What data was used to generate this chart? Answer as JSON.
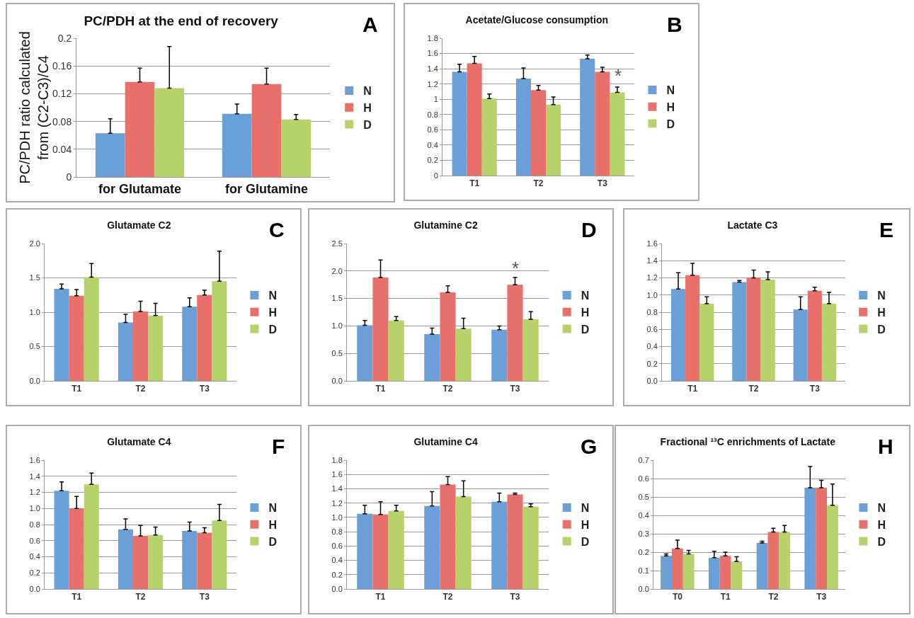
{
  "chart_data": [
    {
      "type": "bar",
      "title": "PC/PDH at the end of recovery",
      "ylabel": "PC/PDH ratio calculated\nfrom (C2-C3)/C4",
      "categories": [
        "for Glutamate",
        "for Glutamine"
      ],
      "series": [
        {
          "name": "N",
          "color": "#6a9fd8",
          "values": [
            0.063,
            0.091
          ],
          "errors": [
            [
              0.063,
              0.084
            ],
            [
              0.091,
              0.105
            ]
          ]
        },
        {
          "name": "H",
          "color": "#e8706a",
          "values": [
            0.137,
            0.134
          ],
          "errors": [
            [
              0.137,
              0.157
            ],
            [
              0.134,
              0.157
            ]
          ]
        },
        {
          "name": "D",
          "color": "#b5d36a",
          "values": [
            0.128,
            0.083
          ],
          "errors": [
            [
              0.128,
              0.188
            ],
            [
              0.083,
              0.09
            ]
          ]
        }
      ],
      "ylim": [
        0,
        0.2
      ],
      "yticks": [
        0,
        0.04,
        0.08,
        0.12,
        0.16,
        0.2
      ],
      "grid": "y",
      "legend": "right",
      "annotations": [
        "A"
      ]
    },
    {
      "type": "bar",
      "title": "Acetate/Glucose consumption",
      "categories": [
        "T1",
        "T2",
        "T3"
      ],
      "series": [
        {
          "name": "N",
          "color": "#6a9fd8",
          "values": [
            1.36,
            1.27,
            1.53
          ],
          "errors": [
            [
              1.36,
              1.46
            ],
            [
              1.27,
              1.41
            ],
            [
              1.53,
              1.58
            ]
          ]
        },
        {
          "name": "H",
          "color": "#e8706a",
          "values": [
            1.47,
            1.12,
            1.36
          ],
          "errors": [
            [
              1.47,
              1.56
            ],
            [
              1.12,
              1.18
            ],
            [
              1.36,
              1.42
            ]
          ]
        },
        {
          "name": "D",
          "color": "#b5d36a",
          "values": [
            1.01,
            0.93,
            1.09
          ],
          "errors": [
            [
              1.01,
              1.07
            ],
            [
              0.93,
              1.03
            ],
            [
              1.09,
              1.16
            ]
          ]
        }
      ],
      "ylim": [
        0,
        1.8
      ],
      "yticks": [
        0,
        0.2,
        0.4,
        0.6,
        0.8,
        1,
        1.2,
        1.4,
        1.6,
        1.8
      ],
      "grid": "y",
      "legend": "right",
      "annotations": [
        "B",
        "*"
      ]
    },
    {
      "type": "bar",
      "title": "Glutamate C2",
      "categories": [
        "T1",
        "T2",
        "T3"
      ],
      "series": [
        {
          "name": "N",
          "color": "#6a9fd8",
          "values": [
            1.34,
            0.85,
            1.08
          ],
          "errors": [
            [
              1.34,
              1.41
            ],
            [
              0.85,
              0.97
            ],
            [
              1.08,
              1.21
            ]
          ]
        },
        {
          "name": "H",
          "color": "#e8706a",
          "values": [
            1.24,
            1.01,
            1.25
          ],
          "errors": [
            [
              1.24,
              1.33
            ],
            [
              1.01,
              1.16
            ],
            [
              1.25,
              1.32
            ]
          ]
        },
        {
          "name": "D",
          "color": "#b5d36a",
          "values": [
            1.51,
            0.95,
            1.45
          ],
          "errors": [
            [
              1.51,
              1.71
            ],
            [
              0.95,
              1.13
            ],
            [
              1.45,
              1.89
            ]
          ]
        }
      ],
      "ylim": [
        0,
        2
      ],
      "yticks": [
        {
          "value": 0,
          "label": "0.0"
        },
        {
          "value": 0.5,
          "label": "0.5"
        },
        {
          "value": 1,
          "label": "1.0"
        },
        {
          "value": 1.5,
          "label": "1.5"
        },
        {
          "value": 2,
          "label": "2.0"
        }
      ],
      "grid": "y",
      "legend": "right",
      "annotations": [
        "C"
      ]
    },
    {
      "type": "bar",
      "title": "Glutamine C2",
      "categories": [
        "T1",
        "T2",
        "T3"
      ],
      "series": [
        {
          "name": "N",
          "color": "#6a9fd8",
          "values": [
            1.01,
            0.85,
            0.93
          ],
          "errors": [
            [
              1.01,
              1.1
            ],
            [
              0.85,
              0.96
            ],
            [
              0.93,
              1.0
            ]
          ]
        },
        {
          "name": "H",
          "color": "#e8706a",
          "values": [
            1.88,
            1.61,
            1.75
          ],
          "errors": [
            [
              1.88,
              2.2
            ],
            [
              1.61,
              1.73
            ],
            [
              1.75,
              1.88
            ]
          ]
        },
        {
          "name": "D",
          "color": "#b5d36a",
          "values": [
            1.1,
            0.95,
            1.12
          ],
          "errors": [
            [
              1.1,
              1.17
            ],
            [
              0.95,
              1.14
            ],
            [
              1.12,
              1.26
            ]
          ]
        }
      ],
      "ylim": [
        0,
        2.5
      ],
      "yticks": [
        {
          "value": 0,
          "label": "0.0"
        },
        {
          "value": 0.5,
          "label": "0.5"
        },
        {
          "value": 1,
          "label": "1.0"
        },
        {
          "value": 1.5,
          "label": "1.5"
        },
        {
          "value": 2,
          "label": "2.0"
        },
        {
          "value": 2.5,
          "label": "2.5"
        }
      ],
      "grid": "y",
      "legend": "right",
      "annotations": [
        "D",
        {
          "text": "*",
          "x": "T3",
          "y": 1.88
        }
      ]
    },
    {
      "type": "bar",
      "title": "Lactate C3",
      "categories": [
        "T1",
        "T2",
        "T3"
      ],
      "series": [
        {
          "name": "N",
          "color": "#6a9fd8",
          "values": [
            1.07,
            1.15,
            0.83
          ],
          "errors": [
            [
              1.07,
              1.26
            ],
            [
              1.15,
              1.17
            ],
            [
              0.83,
              0.98
            ]
          ]
        },
        {
          "name": "H",
          "color": "#e8706a",
          "values": [
            1.23,
            1.2,
            1.05
          ],
          "errors": [
            [
              1.23,
              1.37
            ],
            [
              1.2,
              1.29
            ],
            [
              1.05,
              1.09
            ]
          ]
        },
        {
          "name": "D",
          "color": "#b5d36a",
          "values": [
            0.9,
            1.18,
            0.9
          ],
          "errors": [
            [
              0.9,
              0.98
            ],
            [
              1.18,
              1.27
            ],
            [
              0.9,
              1.03
            ]
          ]
        }
      ],
      "ylim": [
        0,
        1.6
      ],
      "yticks": [
        {
          "value": 0,
          "label": "0.0"
        },
        {
          "value": 0.2,
          "label": "0.2"
        },
        {
          "value": 0.4,
          "label": "0.4"
        },
        {
          "value": 0.6,
          "label": "0.6"
        },
        {
          "value": 0.8,
          "label": "0.8"
        },
        {
          "value": 1,
          "label": "1.0"
        },
        {
          "value": 1.2,
          "label": "1.2"
        },
        {
          "value": 1.4,
          "label": "1.4"
        },
        {
          "value": 1.6,
          "label": "1.6"
        }
      ],
      "grid": "y",
      "legend": "right",
      "annotations": [
        "E"
      ]
    },
    {
      "type": "bar",
      "title": "Glutamate C4",
      "categories": [
        "T1",
        "T2",
        "T3"
      ],
      "series": [
        {
          "name": "N",
          "color": "#6a9fd8",
          "values": [
            1.22,
            0.74,
            0.72
          ],
          "errors": [
            [
              1.22,
              1.33
            ],
            [
              0.74,
              0.87
            ],
            [
              0.72,
              0.83
            ]
          ]
        },
        {
          "name": "H",
          "color": "#e8706a",
          "values": [
            1.0,
            0.66,
            0.7
          ],
          "errors": [
            [
              1.0,
              1.15
            ],
            [
              0.66,
              0.79
            ],
            [
              0.7,
              0.76
            ]
          ]
        },
        {
          "name": "D",
          "color": "#b5d36a",
          "values": [
            1.3,
            0.67,
            0.85
          ],
          "errors": [
            [
              1.3,
              1.44
            ],
            [
              0.67,
              0.77
            ],
            [
              0.85,
              1.05
            ]
          ]
        }
      ],
      "ylim": [
        0,
        1.6
      ],
      "yticks": [
        {
          "value": 0,
          "label": "0.0"
        },
        {
          "value": 0.2,
          "label": "0.2"
        },
        {
          "value": 0.4,
          "label": "0.4"
        },
        {
          "value": 0.6,
          "label": "0.6"
        },
        {
          "value": 0.8,
          "label": "0.8"
        },
        {
          "value": 1,
          "label": "1.0"
        },
        {
          "value": 1.2,
          "label": "1.2"
        },
        {
          "value": 1.4,
          "label": "1.4"
        },
        {
          "value": 1.6,
          "label": "1.6"
        }
      ],
      "grid": "y",
      "legend": "right",
      "annotations": [
        "F"
      ]
    },
    {
      "type": "bar",
      "title": "Glutamine C4",
      "categories": [
        "T1",
        "T2",
        "T3"
      ],
      "series": [
        {
          "name": "N",
          "color": "#6a9fd8",
          "values": [
            1.05,
            1.16,
            1.22
          ],
          "errors": [
            [
              1.05,
              1.17
            ],
            [
              1.16,
              1.36
            ],
            [
              1.22,
              1.34
            ]
          ]
        },
        {
          "name": "H",
          "color": "#e8706a",
          "values": [
            1.04,
            1.46,
            1.32
          ],
          "errors": [
            [
              1.04,
              1.22
            ],
            [
              1.46,
              1.57
            ],
            [
              1.32,
              1.34
            ]
          ]
        },
        {
          "name": "D",
          "color": "#b5d36a",
          "values": [
            1.09,
            1.29,
            1.15
          ],
          "errors": [
            [
              1.09,
              1.17
            ],
            [
              1.29,
              1.51
            ],
            [
              1.15,
              1.19
            ]
          ]
        }
      ],
      "ylim": [
        0,
        1.8
      ],
      "yticks": [
        {
          "value": 0,
          "label": "0.0"
        },
        {
          "value": 0.2,
          "label": "0.2"
        },
        {
          "value": 0.4,
          "label": "0.4"
        },
        {
          "value": 0.6,
          "label": "0.6"
        },
        {
          "value": 0.8,
          "label": "0.8"
        },
        {
          "value": 1,
          "label": "1.0"
        },
        {
          "value": 1.2,
          "label": "1.2"
        },
        {
          "value": 1.4,
          "label": "1.4"
        },
        {
          "value": 1.6,
          "label": "1.6"
        },
        {
          "value": 1.8,
          "label": "1.8"
        }
      ],
      "grid": "y",
      "legend": "right",
      "annotations": [
        "G"
      ]
    },
    {
      "type": "bar",
      "title": "Fractional ¹³C enrichments of Lactate",
      "categories": [
        "T0",
        "T1",
        "T2",
        "T3"
      ],
      "series": [
        {
          "name": "N",
          "color": "#6a9fd8",
          "values": [
            0.18,
            0.17,
            0.25,
            0.55
          ],
          "errors": [
            [
              0.18,
              0.19
            ],
            [
              0.17,
              0.205
            ],
            [
              0.25,
              0.26
            ],
            [
              0.55,
              0.665
            ]
          ]
        },
        {
          "name": "H",
          "color": "#e8706a",
          "values": [
            0.22,
            0.18,
            0.31,
            0.55
          ],
          "errors": [
            [
              0.22,
              0.265
            ],
            [
              0.18,
              0.2
            ],
            [
              0.31,
              0.33
            ],
            [
              0.55,
              0.59
            ]
          ]
        },
        {
          "name": "D",
          "color": "#b5d36a",
          "values": [
            0.19,
            0.15,
            0.31,
            0.455
          ],
          "errors": [
            [
              0.19,
              0.21
            ],
            [
              0.15,
              0.175
            ],
            [
              0.31,
              0.345
            ],
            [
              0.455,
              0.57
            ]
          ]
        }
      ],
      "ylim": [
        0,
        0.7
      ],
      "yticks": [
        {
          "value": 0,
          "label": "0.0"
        },
        {
          "value": 0.1,
          "label": "0.1"
        },
        {
          "value": 0.2,
          "label": "0.2"
        },
        {
          "value": 0.3,
          "label": "0.3"
        },
        {
          "value": 0.4,
          "label": "0.4"
        },
        {
          "value": 0.5,
          "label": "0.5"
        },
        {
          "value": 0.6,
          "label": "0.6"
        },
        {
          "value": 0.7,
          "label": "0.7"
        }
      ],
      "grid": "y",
      "legend": "right",
      "annotations": [
        "H"
      ]
    }
  ]
}
